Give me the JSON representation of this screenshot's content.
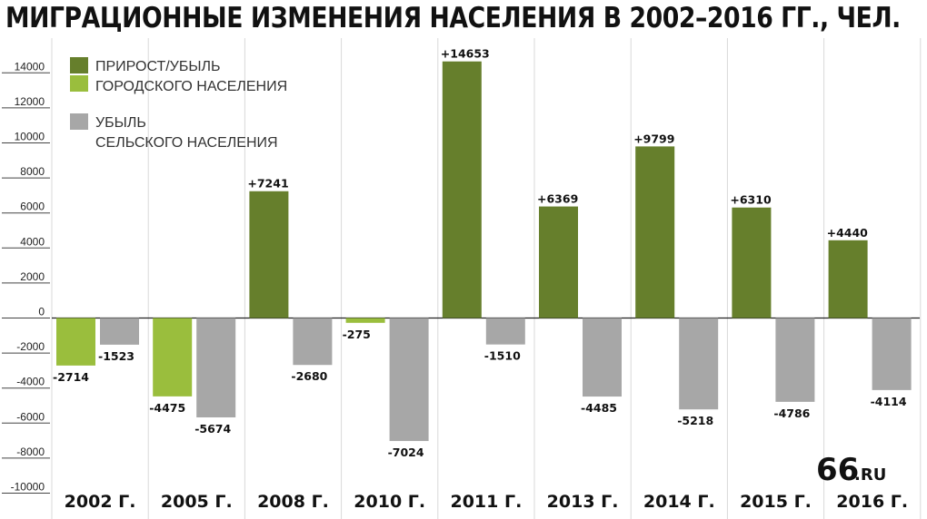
{
  "chart_data": {
    "type": "bar",
    "title": "МИГРАЦИОННЫЕ ИЗМЕНЕНИЯ НАСЕЛЕНИЯ В 2002–2016 ГГ., ЧЕЛ.",
    "categories": [
      "2002 Г.",
      "2005 Г.",
      "2008 Г.",
      "2010 Г.",
      "2011 Г.",
      "2013 Г.",
      "2014 Г.",
      "2015 Г.",
      "2016 Г."
    ],
    "series": [
      {
        "name": "ПРИРОСТ/УБЫЛЬ ГОРОДСКОГО НАСЕЛЕНИЯ",
        "legend_lines": [
          "ПРИРОСТ/УБЫЛЬ",
          "ГОРОДСКОГО НАСЕЛЕНИЯ"
        ],
        "values": [
          -2714,
          -4475,
          7241,
          -275,
          14653,
          6369,
          9799,
          6310,
          4440
        ],
        "labels": [
          "-2714",
          "-4475",
          "+7241",
          "-275",
          "+14653",
          "+6369",
          "+9799",
          "+6310",
          "+4440"
        ],
        "color_positive": "#667f2c",
        "color_negative": "#9abe3d"
      },
      {
        "name": "УБЫЛЬ СЕЛЬСКОГО НАСЕЛЕНИЯ",
        "legend_lines": [
          "УБЫЛЬ",
          "СЕЛЬСКОГО НАСЕЛЕНИЯ"
        ],
        "values": [
          -1523,
          -5674,
          -2680,
          -7024,
          -1510,
          -4485,
          -5218,
          -4786,
          -4114
        ],
        "labels": [
          "-1523",
          "-5674",
          "-2680",
          "-7024",
          "-1510",
          "-4485",
          "-5218",
          "-4786",
          "-4114"
        ],
        "color": "#a7a7a7"
      }
    ],
    "yticks": [
      14000,
      12000,
      10000,
      8000,
      6000,
      4000,
      2000,
      0,
      -2000,
      -4000,
      -6000,
      -8000,
      -10000
    ],
    "ylim": [
      -10000,
      15000
    ],
    "xlabel": "",
    "ylabel": "",
    "legend_position": "top-left",
    "grid": "vertical separators"
  },
  "logo": {
    "main": "66",
    "suffix": ".RU"
  }
}
